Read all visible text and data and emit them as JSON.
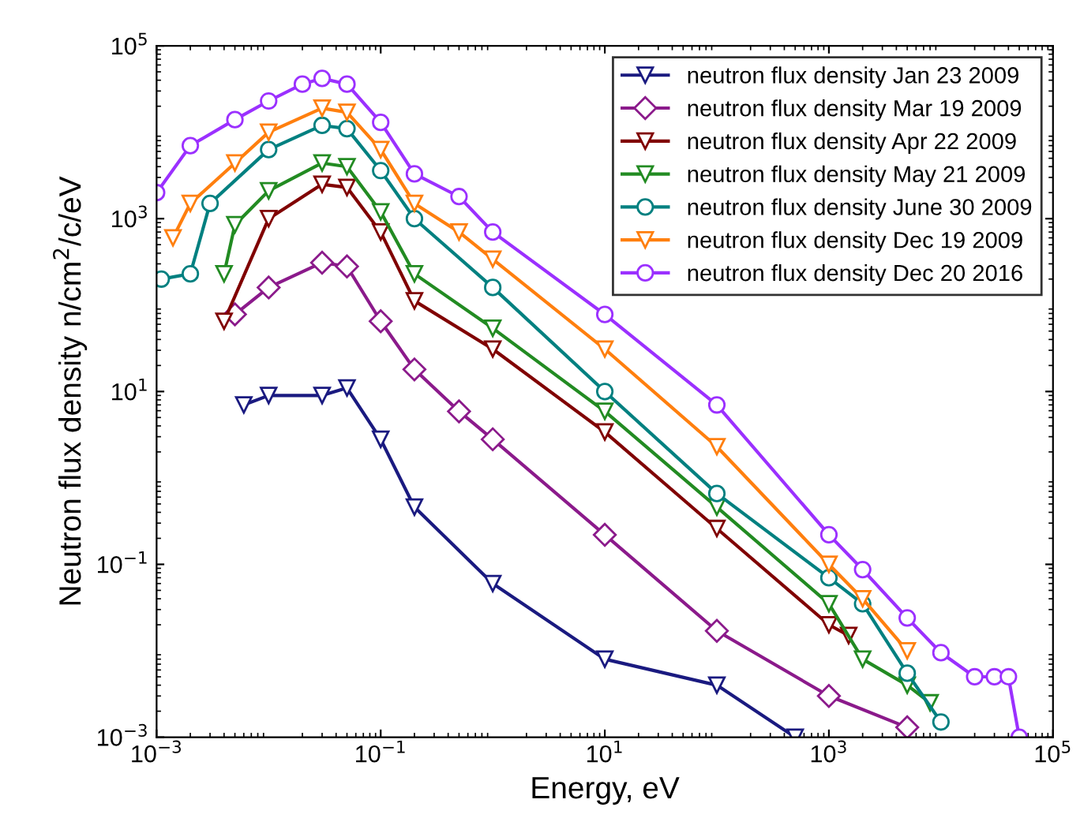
{
  "chart_data": {
    "type": "line",
    "xlabel": "Energy, eV",
    "ylabel": "Neutron flux density n/cm$^{2}$/c/eV",
    "log": "xy",
    "grid": false,
    "legend": "top right",
    "line_style": "solid",
    "xlim": [
      0.001,
      100000
    ],
    "ylim": [
      0.001,
      100000
    ],
    "xticks": [
      {
        "value": 0.001,
        "label": "10$^{−3}$"
      },
      {
        "value": 0.1,
        "label": "10$^{−1}$"
      },
      {
        "value": 10,
        "label": "10$^{1}$"
      },
      {
        "value": 1000,
        "label": "10$^{3}$"
      },
      {
        "value": 100000,
        "label": "10$^{5}$"
      }
    ],
    "yticks": [
      {
        "value": 0.001,
        "label": "10$^{−3}$"
      },
      {
        "value": 0.1,
        "label": "10$^{−1}$"
      },
      {
        "value": 10,
        "label": "10$^{1}$"
      },
      {
        "value": 1000,
        "label": "10$^{3}$"
      },
      {
        "value": 100000,
        "label": "10$^{5}$"
      }
    ],
    "series": [
      {
        "name": "neutron flux density Jan 23 2009",
        "color": "#1a1a80",
        "marker": "triangle",
        "x": [
          0.006,
          0.01,
          0.03,
          0.05,
          0.1,
          0.2,
          1,
          10,
          100,
          500
        ],
        "values": [
          7,
          9,
          9,
          11,
          2.8,
          0.46,
          0.06,
          0.008,
          0.004,
          0.001
        ]
      },
      {
        "name": "neutron flux density Mar 19 2009",
        "color": "#8b1a8b",
        "marker": "diamond",
        "x": [
          0.005,
          0.01,
          0.03,
          0.05,
          0.1,
          0.2,
          0.5,
          1,
          10,
          100,
          1000,
          5000
        ],
        "values": [
          78,
          160,
          310,
          280,
          65,
          18,
          5.9,
          2.8,
          0.22,
          0.017,
          0.003,
          0.0013
        ]
      },
      {
        "name": "neutron flux density Apr 22 2009",
        "color": "#800000",
        "marker": "triangle",
        "x": [
          0.004,
          0.01,
          0.03,
          0.05,
          0.1,
          0.2,
          1,
          10,
          100,
          1000,
          1500
        ],
        "values": [
          65,
          1000,
          2500,
          2300,
          700,
          112,
          31,
          3.4,
          0.26,
          0.02,
          0.015
        ]
      },
      {
        "name": "neutron flux density May 21 2009",
        "color": "#228b22",
        "marker": "triangle",
        "x": [
          0.004,
          0.005,
          0.01,
          0.03,
          0.05,
          0.1,
          0.2,
          1,
          10,
          100,
          1000,
          2000,
          5000,
          8000
        ],
        "values": [
          230,
          850,
          2100,
          4400,
          4000,
          1200,
          230,
          54,
          5.9,
          0.46,
          0.035,
          0.008,
          0.004,
          0.0025
        ]
      },
      {
        "name": "neutron flux density June 30 2009",
        "color": "#008080",
        "marker": "circle",
        "x": [
          0.0011,
          0.002,
          0.003,
          0.01,
          0.03,
          0.05,
          0.1,
          0.2,
          1,
          10,
          100,
          1000,
          2000,
          5000,
          10000
        ],
        "values": [
          200,
          230,
          1500,
          6300,
          12000,
          11000,
          3600,
          1000,
          160,
          10,
          0.66,
          0.07,
          0.035,
          0.0055,
          0.0015
        ]
      },
      {
        "name": "neutron flux density Dec 19 2009",
        "color": "#ff7f0e",
        "marker": "triangle",
        "x": [
          0.0014,
          0.002,
          0.005,
          0.01,
          0.03,
          0.05,
          0.1,
          0.2,
          0.5,
          1,
          10,
          100,
          1000,
          2000,
          5000
        ],
        "values": [
          600,
          1500,
          4400,
          10000,
          19000,
          17000,
          6300,
          1500,
          700,
          340,
          31,
          2.3,
          0.1,
          0.04,
          0.01
        ]
      },
      {
        "name": "neutron flux density Dec 20 2016",
        "color": "#9b30ff",
        "marker": "circle",
        "x": [
          0.001,
          0.002,
          0.005,
          0.01,
          0.02,
          0.03,
          0.05,
          0.1,
          0.2,
          0.5,
          1,
          10,
          100,
          1000,
          2000,
          5000,
          10000,
          20000,
          30000,
          40000,
          50000
        ],
        "values": [
          2000,
          7000,
          14000,
          23000,
          36000,
          42000,
          36000,
          13000,
          3300,
          1800,
          700,
          78,
          7,
          0.22,
          0.087,
          0.024,
          0.0095,
          0.005,
          0.005,
          0.005,
          0.001
        ]
      }
    ]
  }
}
